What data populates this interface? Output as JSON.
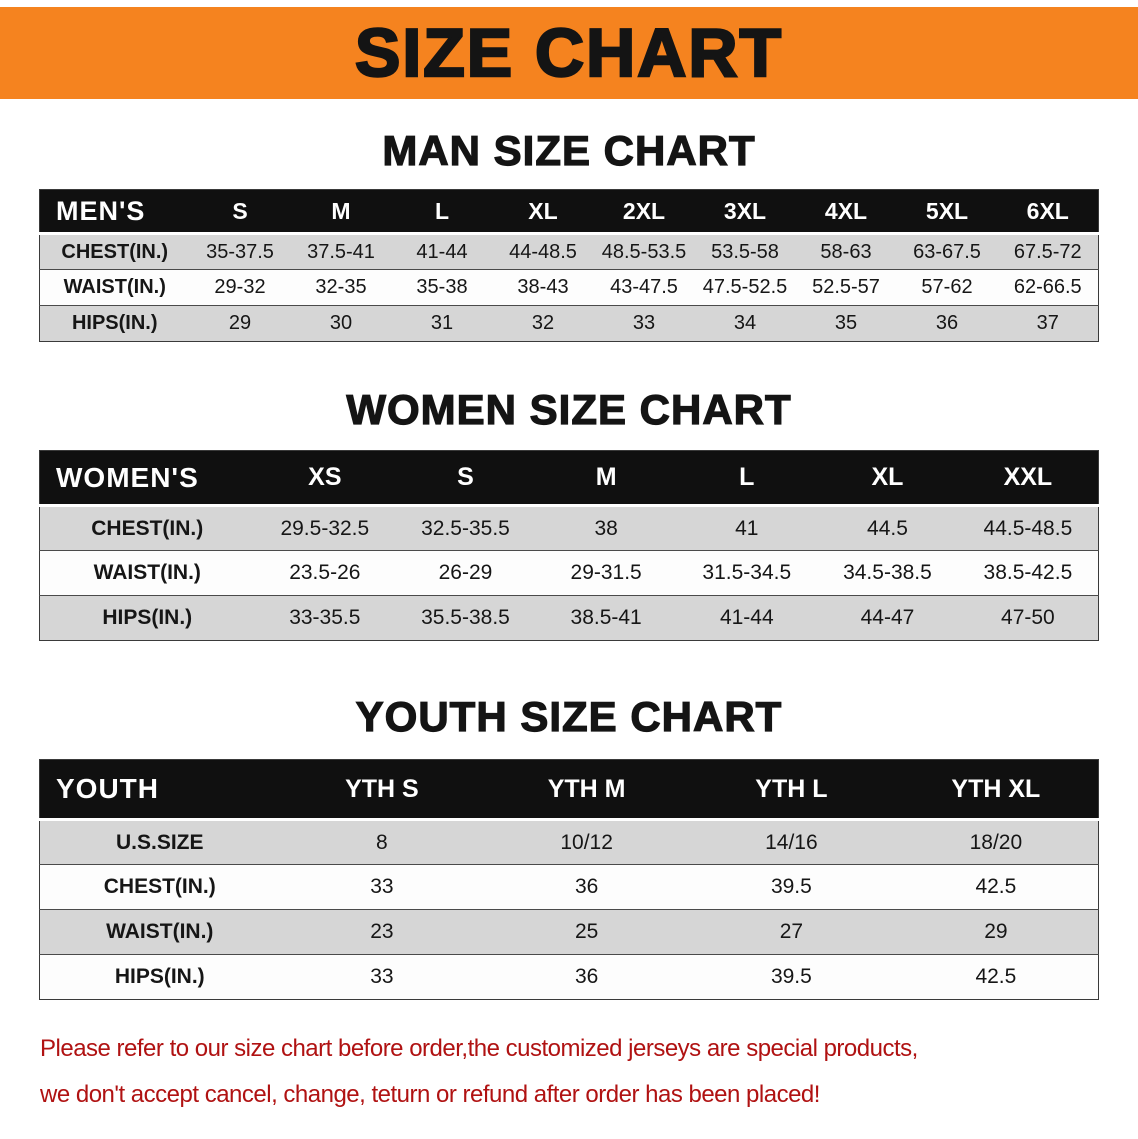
{
  "banner": {
    "title": "SIZE CHART",
    "bg_color": "#f5831f",
    "text_color": "#141414"
  },
  "sections": [
    {
      "heading": "MAN SIZE CHART",
      "table": {
        "header": [
          "MEN'S",
          "S",
          "M",
          "L",
          "XL",
          "2XL",
          "3XL",
          "4XL",
          "5XL",
          "6XL"
        ],
        "rows": [
          {
            "label": "CHEST(IN.)",
            "values": [
              "35-37.5",
              "37.5-41",
              "41-44",
              "44-48.5",
              "48.5-53.5",
              "53.5-58",
              "58-63",
              "63-67.5",
              "67.5-72"
            ]
          },
          {
            "label": "WAIST(IN.)",
            "values": [
              "29-32",
              "32-35",
              "35-38",
              "38-43",
              "43-47.5",
              "47.5-52.5",
              "52.5-57",
              "57-62",
              "62-66.5"
            ]
          },
          {
            "label": "HIPS(IN.)",
            "values": [
              "29",
              "30",
              "31",
              "32",
              "33",
              "34",
              "35",
              "36",
              "37"
            ]
          }
        ]
      }
    },
    {
      "heading": "WOMEN SIZE CHART",
      "table": {
        "header": [
          "WOMEN'S",
          "XS",
          "S",
          "M",
          "L",
          "XL",
          "XXL"
        ],
        "rows": [
          {
            "label": "CHEST(IN.)",
            "values": [
              "29.5-32.5",
              "32.5-35.5",
              "38",
              "41",
              "44.5",
              "44.5-48.5"
            ]
          },
          {
            "label": "WAIST(IN.)",
            "values": [
              "23.5-26",
              "26-29",
              "29-31.5",
              "31.5-34.5",
              "34.5-38.5",
              "38.5-42.5"
            ]
          },
          {
            "label": "HIPS(IN.)",
            "values": [
              "33-35.5",
              "35.5-38.5",
              "38.5-41",
              "41-44",
              "44-47",
              "47-50"
            ]
          }
        ]
      }
    },
    {
      "heading": "YOUTH SIZE CHART",
      "table": {
        "header": [
          "YOUTH",
          "YTH S",
          "YTH M",
          "YTH L",
          "YTH XL"
        ],
        "rows": [
          {
            "label": "U.S.SIZE",
            "values": [
              "8",
              "10/12",
              "14/16",
              "18/20"
            ]
          },
          {
            "label": "CHEST(IN.)",
            "values": [
              "33",
              "36",
              "39.5",
              "42.5"
            ]
          },
          {
            "label": "WAIST(IN.)",
            "values": [
              "23",
              "25",
              "27",
              "29"
            ]
          },
          {
            "label": "HIPS(IN.)",
            "values": [
              "33",
              "36",
              "39.5",
              "42.5"
            ]
          }
        ]
      }
    }
  ],
  "footer": {
    "line1": "Please refer to our size chart before order,the customized jerseys are special products,",
    "line2": "we don't accept cancel, change, teturn or refund after order has been placed!",
    "text_color": "#b01212"
  }
}
